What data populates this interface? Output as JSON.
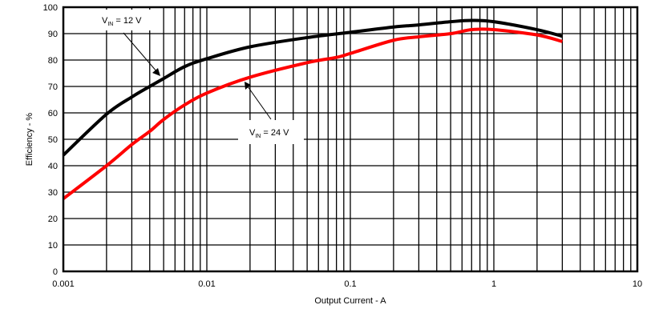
{
  "chart_data": {
    "type": "line",
    "title": "",
    "xlabel": "Output Current - A",
    "ylabel": "Efficiency - %",
    "xscale": "log",
    "xlim": [
      0.001,
      10
    ],
    "ylim": [
      0,
      100
    ],
    "grid": true,
    "x_ticks": [
      "0.001",
      "0.01",
      "0.1",
      "1",
      "10"
    ],
    "y_ticks": [
      "0",
      "10",
      "20",
      "30",
      "40",
      "50",
      "60",
      "70",
      "80",
      "90",
      "100"
    ],
    "series": [
      {
        "name": "VIN = 12 V",
        "color": "#000000",
        "x": [
          0.001,
          0.002,
          0.003,
          0.004,
          0.005,
          0.007,
          0.01,
          0.02,
          0.05,
          0.1,
          0.2,
          0.3,
          0.5,
          0.7,
          1,
          2,
          3
        ],
        "values": [
          44,
          59.5,
          66,
          70,
          73,
          77.5,
          80.5,
          85,
          88.5,
          90.5,
          92.5,
          93.3,
          94.5,
          95,
          94.5,
          91.5,
          89
        ]
      },
      {
        "name": "VIN = 24 V",
        "color": "#ff0000",
        "x": [
          0.001,
          0.002,
          0.003,
          0.004,
          0.005,
          0.007,
          0.01,
          0.02,
          0.05,
          0.08,
          0.1,
          0.2,
          0.3,
          0.5,
          0.7,
          1,
          2,
          3
        ],
        "values": [
          27.5,
          40,
          48,
          53,
          57.5,
          63,
          67.5,
          73.5,
          79,
          81,
          82.5,
          87.5,
          88.8,
          90,
          91.5,
          91.5,
          89.5,
          87
        ]
      }
    ],
    "annotations": [
      {
        "text_main": "V",
        "text_sub": "IN",
        "text_rest": " = 12 V",
        "target_series": "VIN = 12 V"
      },
      {
        "text_main": "V",
        "text_sub": "IN",
        "text_rest": " = 24 V",
        "target_series": "VIN = 24 V"
      }
    ]
  }
}
